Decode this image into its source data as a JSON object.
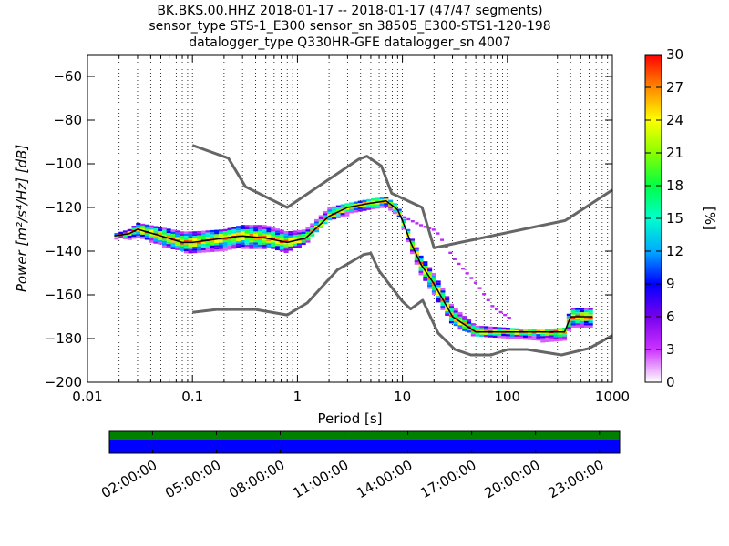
{
  "chart_data": [
    {
      "type": "heatmap",
      "title_lines": [
        "BK.BKS.00.HHZ   2018-01-17 -- 2018-01-17  (47/47 segments)",
        "sensor_type STS-1_E300 sensor_sn 38505_E300-STS1-120-198",
        "datalogger_type Q330HR-GFE datalogger_sn 4007"
      ],
      "xlabel": "Period [s]",
      "ylabel": "Power [m²/s⁴/Hz] [dB]",
      "x_scale": "log",
      "xlim": [
        0.01,
        1000
      ],
      "ylim": [
        -200,
        -50
      ],
      "x_ticks": [
        0.01,
        0.1,
        1,
        10,
        100,
        1000
      ],
      "x_tick_labels": [
        "0.01",
        "0.1",
        "1",
        "10",
        "100",
        "1000"
      ],
      "y_ticks": [
        -200,
        -180,
        -160,
        -140,
        -120,
        -100,
        -80,
        -60
      ],
      "y_tick_labels": [
        "−200",
        "−180",
        "−160",
        "−140",
        "−120",
        "−100",
        "−80",
        "−60"
      ],
      "grid": "dotted vertical at log-decade subdivisions",
      "colorbar": {
        "label": "[%]",
        "range": [
          0,
          30
        ],
        "ticks": [
          0,
          3,
          6,
          9,
          12,
          15,
          18,
          21,
          24,
          27,
          30
        ],
        "tick_labels": [
          "0",
          "3",
          "6",
          "9",
          "12",
          "15",
          "18",
          "21",
          "24",
          "27",
          "30"
        ],
        "colormap": [
          "#ffffff",
          "#cc33ff",
          "#7700ee",
          "#0000ff",
          "#00aaff",
          "#00ffcc",
          "#00ff44",
          "#88ff00",
          "#ffff00",
          "#ff8800",
          "#ff0000"
        ]
      },
      "series": [
        {
          "role": "high-noise-model",
          "color": "#666666",
          "x": [
            0.1,
            0.22,
            0.32,
            0.8,
            3.8,
            4.6,
            6.3,
            7.9,
            15.4,
            20,
            354.8,
            1000
          ],
          "y": [
            -91.5,
            -97.4,
            -110.5,
            -120,
            -98,
            -96.5,
            -101,
            -113.5,
            -120,
            -138.5,
            -126,
            -112
          ]
        },
        {
          "role": "low-noise-model",
          "color": "#666666",
          "x": [
            0.1,
            0.17,
            0.4,
            0.8,
            1.24,
            2.4,
            4.3,
            5.0,
            6.0,
            10.0,
            12.0,
            15.6,
            21.9,
            31.6,
            45.0,
            70.0,
            101.0,
            154.0,
            328.0,
            600.0,
            1000.0
          ],
          "y": [
            -168,
            -166.7,
            -166.7,
            -169.2,
            -163.7,
            -148.6,
            -141.5,
            -141,
            -149,
            -163,
            -166.5,
            -162.5,
            -177.5,
            -185,
            -187.5,
            -187.5,
            -185,
            -185,
            -187.5,
            -184.5,
            -178.6
          ]
        },
        {
          "role": "mode",
          "color": "#000000",
          "x": [
            0.018,
            0.025,
            0.03,
            0.05,
            0.08,
            0.1,
            0.2,
            0.3,
            0.5,
            0.8,
            1.2,
            2,
            3,
            5,
            7,
            9,
            10,
            12,
            15,
            20,
            30,
            50,
            100,
            200,
            350,
            400,
            650
          ],
          "y": [
            -133,
            -132,
            -130,
            -133,
            -136,
            -136,
            -134,
            -133,
            -134,
            -136,
            -134,
            -124,
            -120,
            -118,
            -117,
            -121,
            -126,
            -136,
            -146,
            -155,
            -170,
            -177,
            -177,
            -177,
            -177,
            -170,
            -170
          ]
        }
      ],
      "density_band": {
        "x": [
          0.018,
          0.025,
          0.03,
          0.05,
          0.08,
          0.1,
          0.2,
          0.3,
          0.5,
          0.8,
          1.2,
          2,
          3,
          5,
          7,
          9,
          10,
          12,
          15,
          20,
          30,
          50,
          100,
          200,
          350,
          400,
          650
        ],
        "lower": [
          -134,
          -134,
          -133,
          -137,
          -140,
          -140,
          -139,
          -138,
          -138,
          -140,
          -136,
          -126,
          -123,
          -121,
          -120,
          -123,
          -128,
          -139,
          -150,
          -160,
          -173,
          -179,
          -179,
          -181,
          -181,
          -174,
          -174
        ],
        "upper": [
          -132,
          -130,
          -127,
          -129,
          -131,
          -131,
          -130,
          -128,
          -128,
          -131,
          -130,
          -120,
          -118,
          -116,
          -115,
          -119,
          -124,
          -133,
          -142,
          -150,
          -165,
          -174,
          -175,
          -176,
          -175,
          -166,
          -166
        ]
      },
      "outlier_path": {
        "x": [
          10,
          15,
          20,
          30,
          50,
          70,
          100
        ],
        "y": [
          -124,
          -128,
          -130,
          -143,
          -155,
          -165,
          -170
        ]
      }
    },
    {
      "type": "timeline",
      "x_tick_labels": [
        "02:00:00",
        "05:00:00",
        "08:00:00",
        "11:00:00",
        "14:00:00",
        "17:00:00",
        "20:00:00",
        "23:00:00"
      ],
      "bars": [
        {
          "role": "data-availability",
          "color": "#008000"
        },
        {
          "role": "psd-coverage",
          "color": "#0000ff"
        }
      ]
    }
  ]
}
